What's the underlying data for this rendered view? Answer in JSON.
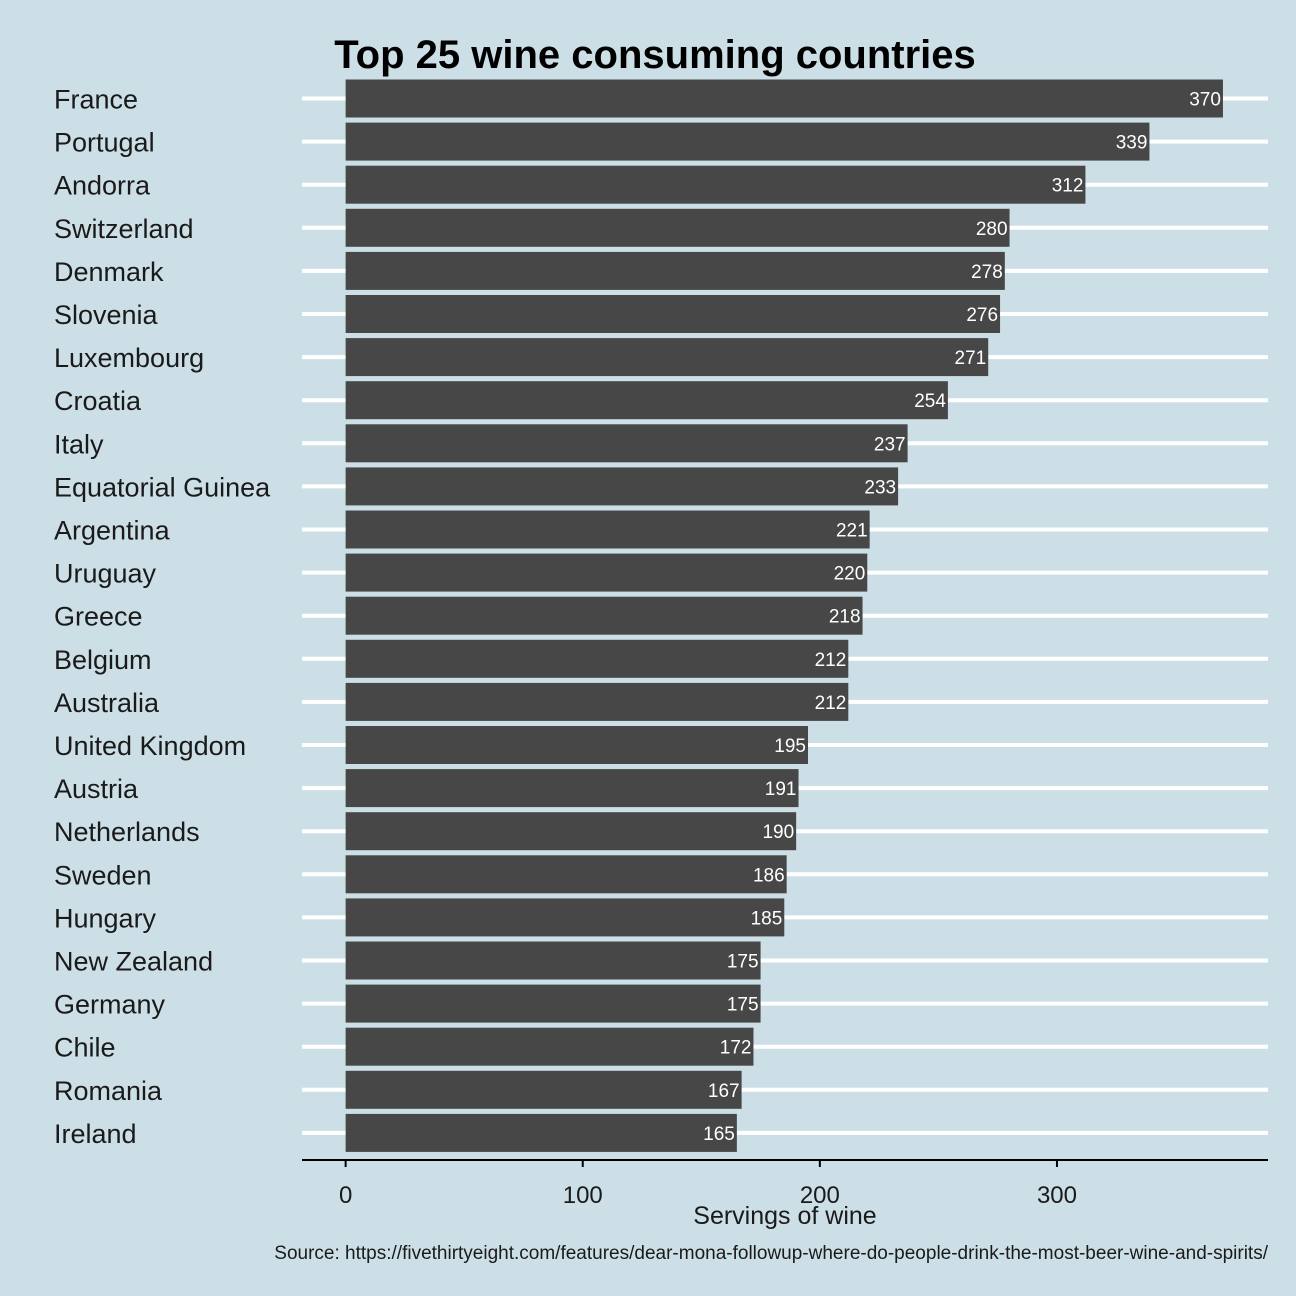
{
  "chart_data": {
    "type": "bar",
    "orientation": "horizontal",
    "title": "Top 25 wine consuming countries",
    "xlabel": "Servings of wine",
    "ylabel": "",
    "caption": "Source: https://fivethirtyeight.com/features/dear-mona-followup-where-do-people-drink-the-most-beer-wine-and-spirits/",
    "categories": [
      "France",
      "Portugal",
      "Andorra",
      "Switzerland",
      "Denmark",
      "Slovenia",
      "Luxembourg",
      "Croatia",
      "Italy",
      "Equatorial Guinea",
      "Argentina",
      "Uruguay",
      "Greece",
      "Belgium",
      "Australia",
      "United Kingdom",
      "Austria",
      "Netherlands",
      "Sweden",
      "Hungary",
      "New Zealand",
      "Germany",
      "Chile",
      "Romania",
      "Ireland"
    ],
    "values": [
      370,
      339,
      312,
      280,
      278,
      276,
      271,
      254,
      237,
      233,
      221,
      220,
      218,
      212,
      212,
      195,
      191,
      190,
      186,
      185,
      175,
      175,
      172,
      167,
      165
    ],
    "data_labels": [
      "370",
      "339",
      "312",
      "280",
      "278",
      "276",
      "271",
      "254",
      "237",
      "233",
      "221",
      "220",
      "218",
      "212",
      "212",
      "195",
      "191",
      "190",
      "186",
      "185",
      "175",
      "175",
      "172",
      "167",
      "165"
    ],
    "xticks": [
      "0",
      "100",
      "200",
      "300"
    ],
    "xlim": [
      -18.4,
      389
    ],
    "grid": "horizontal",
    "colors": {
      "background": "#cddfe6",
      "bar": "#474747",
      "gridline": "#ffffff",
      "text": "#1a1a1a",
      "data_label": "#ffffff"
    }
  }
}
